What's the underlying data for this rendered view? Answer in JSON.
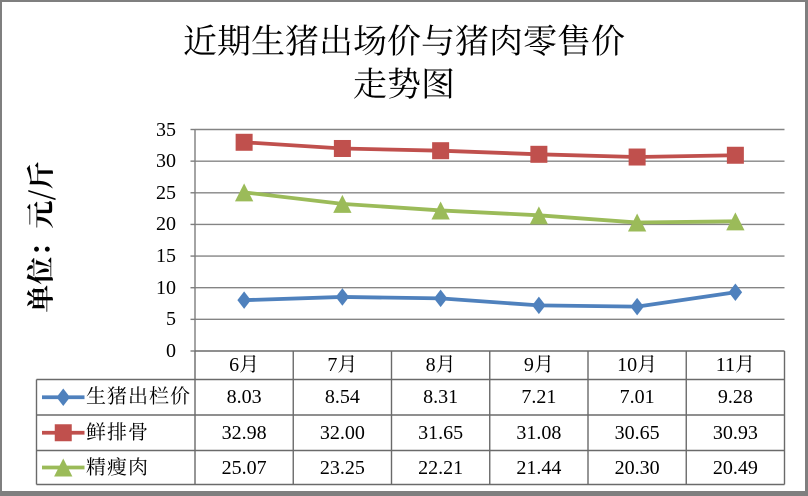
{
  "title": {
    "line1": "近期生猪出场价与猪肉零售价",
    "line2": "走势图"
  },
  "y_axis": {
    "title": "单位：元/斤",
    "tick_labels": [
      "35",
      "30",
      "25",
      "20",
      "15",
      "10",
      "5",
      "0"
    ]
  },
  "chart_data": {
    "type": "line",
    "title": "近期生猪出场价与猪肉零售价 走势图",
    "ylabel": "单位：元/斤",
    "xlabel": "",
    "categories": [
      "6月",
      "7月",
      "8月",
      "9月",
      "10月",
      "11月"
    ],
    "series": [
      {
        "name": "生猪出栏价",
        "values": [
          8.03,
          8.54,
          8.31,
          7.21,
          7.01,
          9.28
        ],
        "value_labels": [
          "8.03",
          "8.54",
          "8.31",
          "7.21",
          "7.01",
          "9.28"
        ],
        "color": "#4F81BD",
        "marker": "diamond"
      },
      {
        "name": "鲜排骨",
        "values": [
          32.98,
          32.0,
          31.65,
          31.08,
          30.65,
          30.93
        ],
        "value_labels": [
          "32.98",
          "32.00",
          "31.65",
          "31.08",
          "30.65",
          "30.93"
        ],
        "color": "#C0504D",
        "marker": "square"
      },
      {
        "name": "精瘦肉",
        "values": [
          25.07,
          23.25,
          22.21,
          21.44,
          20.3,
          20.49
        ],
        "value_labels": [
          "25.07",
          "23.25",
          "22.21",
          "21.44",
          "20.30",
          "20.49"
        ],
        "color": "#9BBB59",
        "marker": "triangle"
      }
    ],
    "ylim": [
      0,
      35
    ],
    "ytick_step": 5,
    "grid": true,
    "legend_position": "data-table-left"
  },
  "colors": {
    "background": "#ffffff",
    "frame_border": "#7f7f7f",
    "gridline": "#848484",
    "axis_line": "#7d7d7d",
    "table_border": "#6a6a6a",
    "text": "#000000"
  }
}
